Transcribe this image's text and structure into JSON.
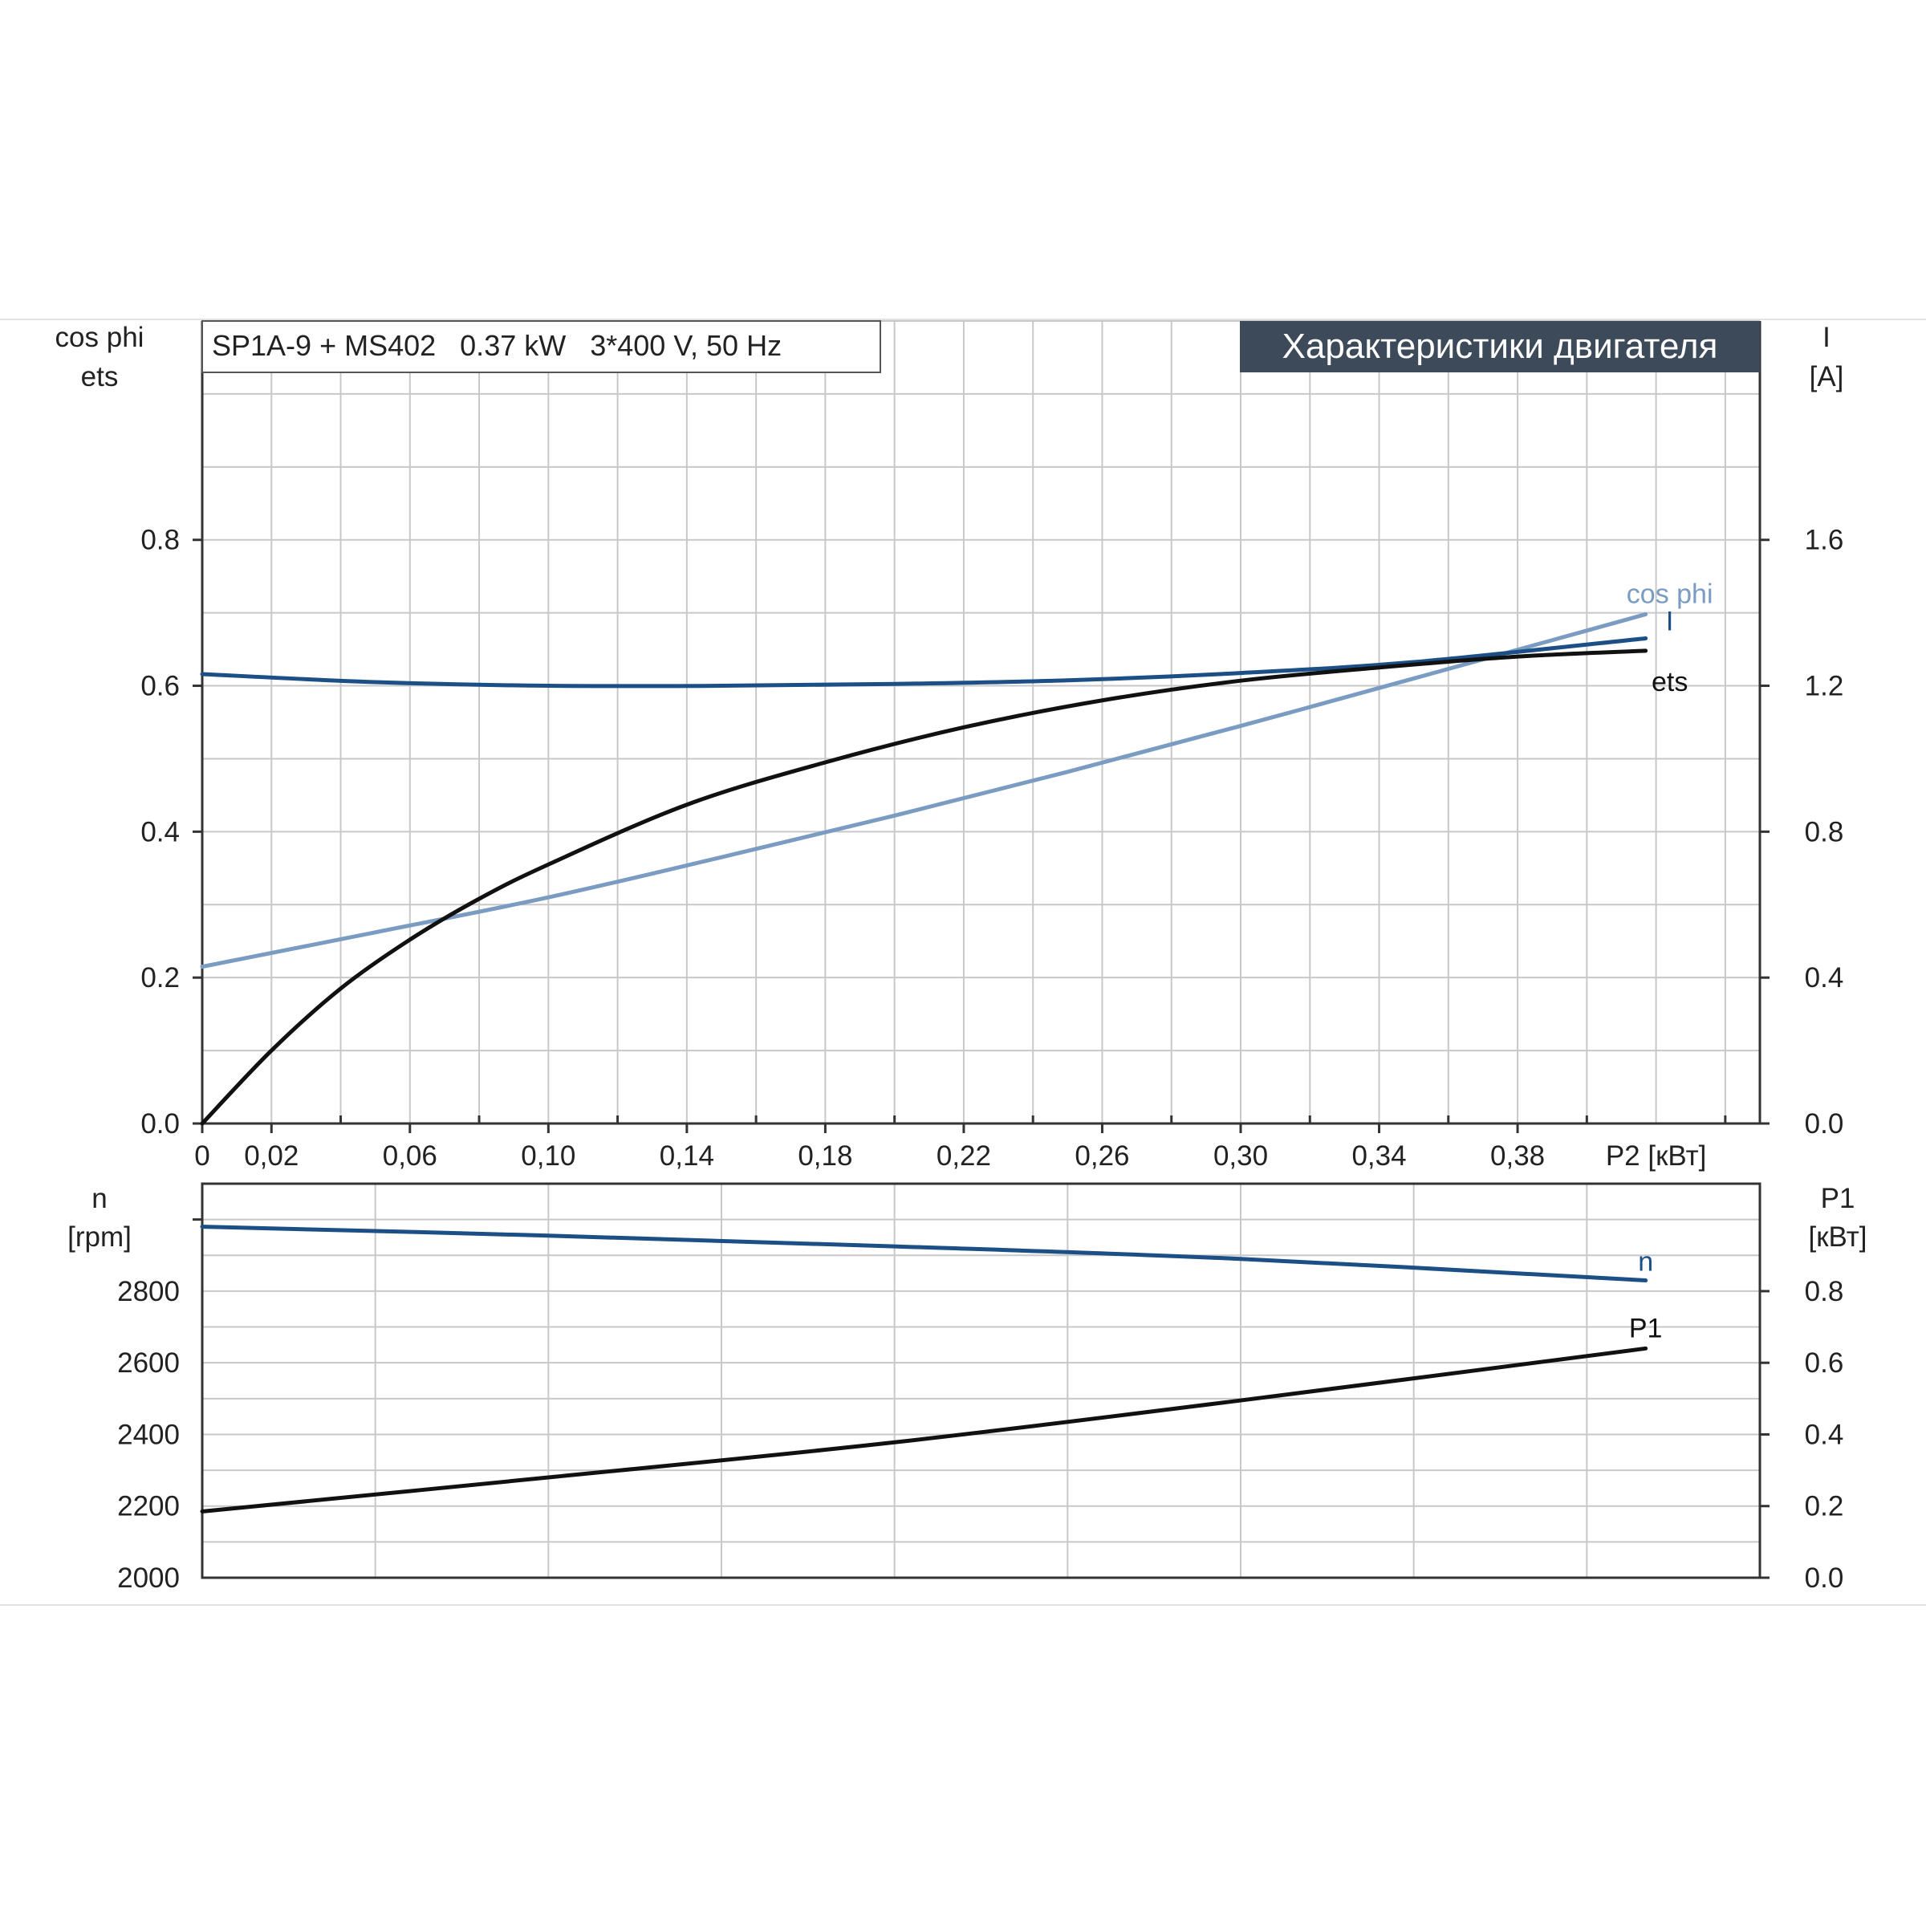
{
  "header": {
    "model": "SP1A-9 + MS402   0.37 kW   3*400 V, 50 Hz",
    "title": "Характеристики двигателя"
  },
  "colors": {
    "ets": "#111111",
    "current": "#1c4f86",
    "cos_phi": "#7a9cc2",
    "n": "#1c4f86",
    "p1": "#111111",
    "title_bg": "#3d4a5a",
    "grid": "#c8c8c8",
    "axis": "#333333"
  },
  "chart_data": [
    {
      "id": "upper",
      "type": "line",
      "left_axis": {
        "labels": [
          "cos phi",
          "ets"
        ],
        "range": [
          0,
          1.1
        ],
        "ticks": [
          "0.0",
          "0.2",
          "0.4",
          "0.6",
          "0.8"
        ]
      },
      "right_axis": {
        "labels": [
          "I",
          "[A]"
        ],
        "range": [
          0,
          2.2
        ],
        "ticks": [
          "0.0",
          "0.4",
          "0.8",
          "1.2",
          "1.6"
        ]
      },
      "x_axis": {
        "label": "P2 [кВт]",
        "range": [
          0,
          0.45
        ],
        "ticks": [
          "0",
          "0,02",
          "0,06",
          "0,10",
          "0,14",
          "0,18",
          "0,22",
          "0,26",
          "0,30",
          "0,34",
          "0,38"
        ]
      },
      "grid": true,
      "series": [
        {
          "name": "cos phi",
          "axis": "left",
          "x": [
            0,
            0.05,
            0.1,
            0.15,
            0.2,
            0.25,
            0.3,
            0.35,
            0.417
          ],
          "y": [
            0.215,
            0.262,
            0.31,
            0.365,
            0.422,
            0.482,
            0.545,
            0.61,
            0.698
          ]
        },
        {
          "name": "I",
          "axis": "right",
          "x": [
            0,
            0.05,
            0.1,
            0.15,
            0.2,
            0.25,
            0.3,
            0.35,
            0.417
          ],
          "y": [
            1.232,
            1.21,
            1.2,
            1.2,
            1.205,
            1.215,
            1.235,
            1.265,
            1.33
          ]
        },
        {
          "name": "ets",
          "axis": "left",
          "x": [
            0,
            0.02,
            0.04,
            0.06,
            0.08,
            0.1,
            0.14,
            0.18,
            0.22,
            0.26,
            0.3,
            0.34,
            0.38,
            0.417
          ],
          "y": [
            0,
            0.1,
            0.185,
            0.252,
            0.308,
            0.355,
            0.437,
            0.495,
            0.543,
            0.58,
            0.607,
            0.625,
            0.64,
            0.648
          ]
        }
      ]
    },
    {
      "id": "lower",
      "type": "line",
      "left_axis": {
        "labels": [
          "n",
          "[rpm]"
        ],
        "range": [
          2000,
          3100
        ],
        "ticks": [
          "2000",
          "2200",
          "2400",
          "2600",
          "2800"
        ]
      },
      "right_axis": {
        "labels": [
          "P1",
          "[кВт]"
        ],
        "range": [
          0,
          1.1
        ],
        "ticks": [
          "0.0",
          "0.2",
          "0.4",
          "0.6",
          "0.8"
        ]
      },
      "x_axis": {
        "range": [
          0,
          0.45
        ]
      },
      "grid": true,
      "series": [
        {
          "name": "n",
          "axis": "left",
          "x": [
            0,
            0.1,
            0.2,
            0.3,
            0.417
          ],
          "y": [
            2980,
            2955,
            2925,
            2890,
            2830
          ]
        },
        {
          "name": "P1",
          "axis": "right",
          "x": [
            0,
            0.1,
            0.2,
            0.3,
            0.417
          ],
          "y": [
            0.185,
            0.28,
            0.378,
            0.495,
            0.64
          ]
        }
      ]
    }
  ]
}
